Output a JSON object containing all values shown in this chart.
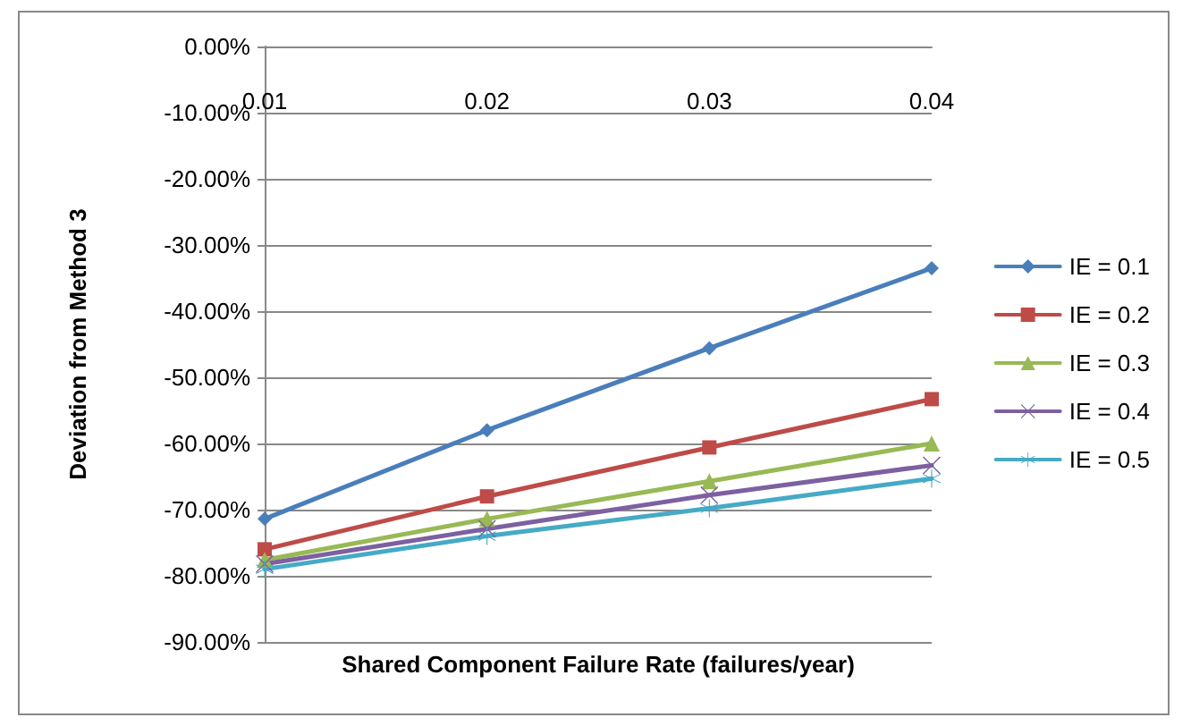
{
  "chart_data": {
    "type": "line",
    "xlabel": "Shared Component Failure Rate (failures/year)",
    "ylabel": "Deviation from Method 3",
    "categories": [
      "0.01",
      "0.02",
      "0.03",
      "0.04"
    ],
    "series": [
      {
        "name": "IE = 0.1",
        "color": "#4a7ebb",
        "marker": "diamond",
        "values": [
          -71.4,
          -58,
          -45.6,
          -33.5
        ]
      },
      {
        "name": "IE = 0.2",
        "color": "#be4b48",
        "marker": "square",
        "values": [
          -76,
          -68,
          -60.6,
          -53.3
        ]
      },
      {
        "name": "IE = 0.3",
        "color": "#98b954",
        "marker": "triangle",
        "values": [
          -77.6,
          -71.4,
          -65.7,
          -60
        ]
      },
      {
        "name": "IE = 0.4",
        "color": "#7d60a0",
        "marker": "cross",
        "values": [
          -78.2,
          -72.9,
          -67.8,
          -63.3
        ]
      },
      {
        "name": "IE = 0.5",
        "color": "#46aac5",
        "marker": "star",
        "values": [
          -79,
          -74,
          -69.8,
          -65.3
        ]
      }
    ],
    "ylim": [
      -90,
      0
    ],
    "yticks": [
      {
        "value": -90,
        "label": "-90.00%"
      },
      {
        "value": -80,
        "label": "-80.00%"
      },
      {
        "value": -70,
        "label": "-70.00%"
      },
      {
        "value": -60,
        "label": "-60.00%"
      },
      {
        "value": -50,
        "label": "-50.00%"
      },
      {
        "value": -40,
        "label": "-40.00%"
      },
      {
        "value": -30,
        "label": "-30.00%"
      },
      {
        "value": -20,
        "label": "-20.00%"
      },
      {
        "value": -10,
        "label": "-10.00%"
      },
      {
        "value": 0,
        "label": "0.00%"
      }
    ],
    "grid": "y",
    "legend": "right",
    "line_style": "solid"
  }
}
